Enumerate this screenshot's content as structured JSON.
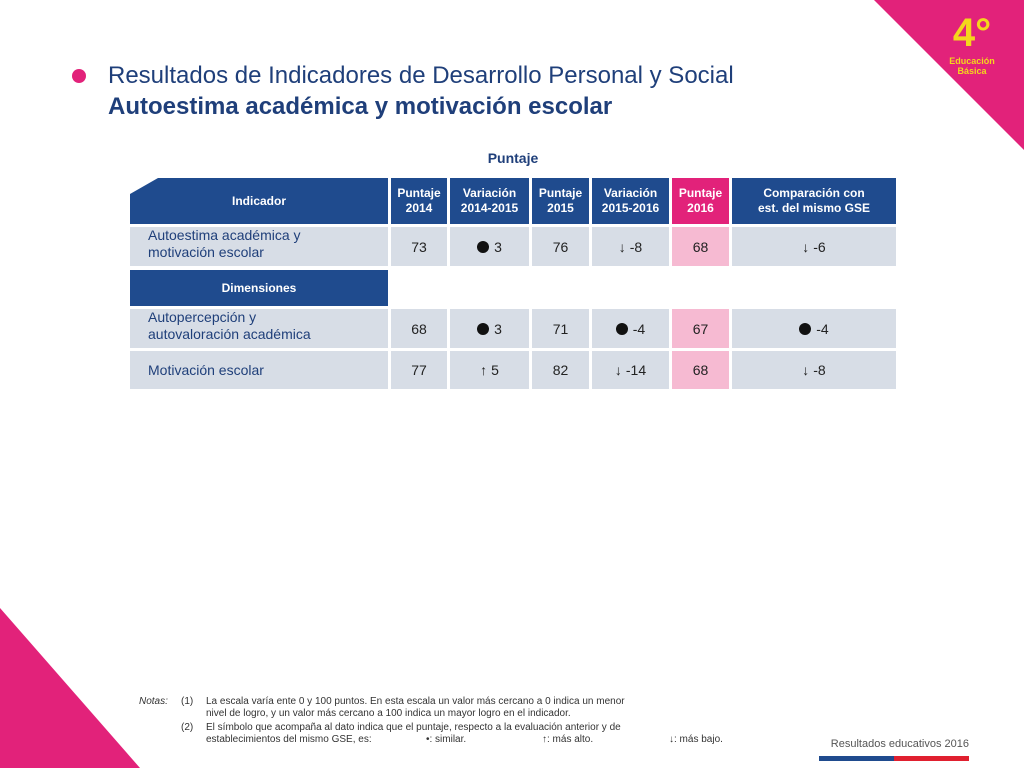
{
  "badge": {
    "grade": "4°",
    "level_line1": "Educación",
    "level_line2": "Básica"
  },
  "title": {
    "line1": "Resultados de Indicadores de Desarrollo Personal y Social",
    "line2": "Autoestima académica y motivación escolar"
  },
  "table": {
    "caption": "Puntaje",
    "headers": {
      "indicador": "Indicador",
      "p2014_a": "Puntaje",
      "p2014_b": "2014",
      "v1415_a": "Variación",
      "v1415_b": "2014-2015",
      "p2015_a": "Puntaje",
      "p2015_b": "2015",
      "v1516_a": "Variación",
      "v1516_b": "2015-2016",
      "p2016_a": "Puntaje",
      "p2016_b": "2016",
      "comp_a": "Comparación con",
      "comp_b": "est. del mismo GSE"
    },
    "main_row": {
      "label_a": "Autoestima académica y",
      "label_b": "motivación escolar",
      "p2014": "73",
      "v1415": "3",
      "p2015": "76",
      "v1516": "-8",
      "p2016": "68",
      "comp": "-6"
    },
    "dimensiones_label": "Dimensiones",
    "dim1": {
      "label_a": "Autopercepción y",
      "label_b": "autovaloración académica",
      "p2014": "68",
      "v1415": "3",
      "p2015": "71",
      "v1516": "-4",
      "p2016": "67",
      "comp": "-4"
    },
    "dim2": {
      "label": "Motivación escolar",
      "p2014": "77",
      "v1415": "5",
      "p2015": "82",
      "v1516": "-14",
      "p2016": "68",
      "comp": "-8"
    }
  },
  "notes": {
    "label": "Notas:",
    "n1": "(1)",
    "t1a": "La escala varía ente 0 y 100 puntos. En esta escala un valor más cercano a 0 indica un menor",
    "t1b": "nivel de logro, y un valor más cercano a 100 indica un mayor logro en el indicador.",
    "n2": "(2)",
    "t2a": "El símbolo que acompaña al dato indica que el puntaje, respecto a la evaluación anterior y de",
    "t2b": "establecimientos del mismo GSE, es:",
    "sym1": "•: similar.",
    "sym2": "↑: más alto.",
    "sym3": "↓: más bajo."
  },
  "footer": "Resultados educativos 2016",
  "colors": {
    "navy": "#1f4b8e",
    "pink": "#e2227a",
    "cell": "#d7dde6",
    "pink_light": "#f6bad2"
  }
}
